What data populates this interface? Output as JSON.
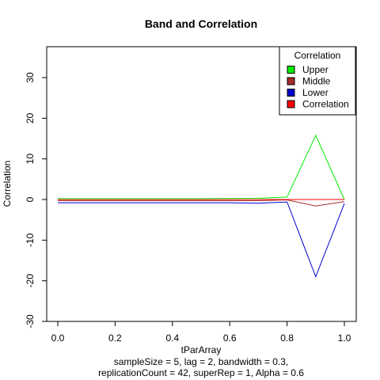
{
  "chart_data": {
    "type": "line",
    "title": "Band and Correlation",
    "xlabel": "tParArray",
    "ylabel": "Correlation",
    "subtitle_lines": [
      "sampleSize = 5, lag = 2, bandwidth = 0.3,",
      "replicationCount = 42, superRep = 1, Alpha = 0.6"
    ],
    "xlim": [
      0.0,
      1.0
    ],
    "ylim": [
      -30,
      30
    ],
    "xticks": [
      "0.0",
      "0.2",
      "0.4",
      "0.6",
      "0.8",
      "1.0"
    ],
    "yticks": [
      "-30",
      "-20",
      "-10",
      "0",
      "10",
      "20",
      "30"
    ],
    "x": [
      0.0,
      0.1,
      0.2,
      0.3,
      0.4,
      0.5,
      0.6,
      0.7,
      0.8,
      0.9,
      1.0
    ],
    "series": [
      {
        "name": "Upper",
        "color": "#00ee00",
        "values": [
          0.2,
          0.2,
          0.2,
          0.2,
          0.2,
          0.2,
          0.25,
          0.3,
          0.6,
          15.8,
          0.0
        ]
      },
      {
        "name": "Middle",
        "color": "#a52a2a",
        "values": [
          -0.3,
          -0.3,
          -0.3,
          -0.3,
          -0.3,
          -0.3,
          -0.3,
          -0.3,
          -0.1,
          -1.6,
          -0.5
        ]
      },
      {
        "name": "Lower",
        "color": "#0000cd",
        "values": [
          -0.8,
          -0.8,
          -0.8,
          -0.8,
          -0.8,
          -0.8,
          -0.8,
          -0.9,
          -0.6,
          -19.0,
          -1.0
        ]
      },
      {
        "name": "Correlation",
        "color": "#ff0000",
        "values": [
          0,
          0,
          0,
          0,
          0,
          0,
          0,
          0,
          0,
          0,
          0
        ]
      }
    ],
    "legend": {
      "title": "Correlation",
      "position": "top-right"
    }
  }
}
